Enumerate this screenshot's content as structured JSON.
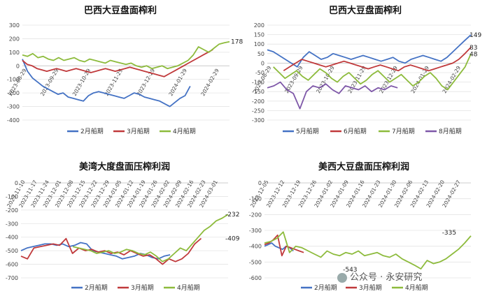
{
  "watermark": {
    "text": "公众号 · 永安研究",
    "icon": "wechat-icon"
  },
  "colors": {
    "blue": "#4472C4",
    "red": "#C0393B",
    "green": "#8DBB3C",
    "purple": "#7E57A8"
  },
  "chart_data": [
    {
      "type": "line",
      "title": "巴西大豆盘面榨利",
      "ylim": [
        -400,
        300
      ],
      "yticks": [
        300,
        200,
        100,
        0,
        -100,
        -200,
        -300,
        -400
      ],
      "grid": true,
      "legend": "bottom",
      "x_ticklabels": [
        "2023-08-29",
        "2023-09-29",
        "2023-10-29",
        "2023-11-29",
        "2023-12-29",
        "2024-01-29",
        "2024-02-29"
      ],
      "end_label": "178",
      "series": [
        {
          "name": "2月船期",
          "color": "#4472C4",
          "start": 0.0,
          "end": 0.81,
          "values": [
            50,
            -40,
            -90,
            -120,
            -150,
            -170,
            -190,
            -210,
            -200,
            -230,
            -240,
            -250,
            -260,
            -220,
            -200,
            -190,
            -200,
            -210,
            -220,
            -230,
            -240,
            -220,
            -200,
            -210,
            -230,
            -240,
            -250,
            -260,
            -280,
            -300,
            -270,
            -240,
            -220,
            -150
          ]
        },
        {
          "name": "3月船期",
          "color": "#C0393B",
          "start": 0.0,
          "end": 0.92,
          "values": [
            40,
            10,
            0,
            -20,
            -30,
            -40,
            -30,
            -20,
            -30,
            -40,
            -30,
            -20,
            -30,
            -40,
            -50,
            -40,
            -30,
            -20,
            -30,
            -40,
            -30,
            -20,
            -10,
            -20,
            -30,
            -40,
            -50,
            -60,
            -70,
            -80,
            -60,
            -40,
            -20,
            0,
            20,
            40,
            60,
            80,
            100,
            120
          ]
        },
        {
          "name": "4月船期",
          "color": "#8DBB3C",
          "start": 0.0,
          "end": 1.0,
          "values": [
            80,
            70,
            90,
            60,
            70,
            50,
            40,
            60,
            40,
            50,
            60,
            40,
            30,
            50,
            40,
            30,
            20,
            40,
            30,
            20,
            10,
            20,
            0,
            -10,
            0,
            -20,
            -10,
            0,
            -20,
            -10,
            0,
            20,
            40,
            80,
            140,
            120,
            100,
            130,
            160,
            170,
            178
          ]
        }
      ]
    },
    {
      "type": "line",
      "title": "巴西大豆盘面榨利",
      "ylim": [
        -300,
        200
      ],
      "yticks": [
        200,
        150,
        100,
        50,
        0,
        -50,
        -100,
        -150,
        -200,
        -250,
        -300
      ],
      "grid": true,
      "legend": "bottom",
      "x_ticklabels": [
        "2023-08-29",
        "2023-09-29",
        "2023-10-29",
        "2023-11-29",
        "2023-12-29",
        "2024-01-29",
        "2024-02-29"
      ],
      "end_labels": [
        "149",
        "83",
        "48"
      ],
      "series": [
        {
          "name": "5月船期",
          "color": "#4472C4",
          "start": 0.0,
          "end": 1.0,
          "values": [
            70,
            60,
            40,
            20,
            0,
            -20,
            30,
            60,
            40,
            20,
            30,
            50,
            40,
            30,
            20,
            30,
            40,
            30,
            20,
            10,
            20,
            30,
            10,
            0,
            20,
            30,
            40,
            30,
            20,
            10,
            30,
            60,
            90,
            120,
            149
          ]
        },
        {
          "name": "6月船期",
          "color": "#C0393B",
          "start": 0.08,
          "end": 1.0,
          "values": [
            -40,
            -20,
            0,
            20,
            10,
            0,
            -10,
            -20,
            -10,
            0,
            10,
            0,
            -10,
            -20,
            -30,
            -20,
            -10,
            -20,
            -30,
            -40,
            -20,
            -10,
            -20,
            -30,
            -40,
            -30,
            -20,
            -10,
            0,
            20,
            50,
            83
          ]
        },
        {
          "name": "7月船期",
          "color": "#8DBB3C",
          "start": 0.03,
          "end": 1.0,
          "values": [
            -20,
            -50,
            -80,
            -60,
            -40,
            -70,
            -90,
            -60,
            -30,
            -50,
            -80,
            -100,
            -70,
            -50,
            -80,
            -110,
            -90,
            -60,
            -40,
            -70,
            -100,
            -80,
            -60,
            -90,
            -120,
            -100,
            -70,
            -50,
            -80,
            -120,
            -140,
            -100,
            -60,
            -20,
            48
          ]
        },
        {
          "name": "8月船期",
          "color": "#7E57A8",
          "start": 0.0,
          "end": 0.64,
          "values": [
            -130,
            -120,
            -100,
            -140,
            -160,
            -240,
            -150,
            -120,
            -130,
            -110,
            -140,
            -160,
            -120,
            -130,
            -140,
            -120,
            -150,
            -130,
            -140,
            -120,
            -130
          ]
        }
      ]
    },
    {
      "type": "line",
      "title": "美湾大度盘面压榨利润",
      "ylim": [
        -700,
        0
      ],
      "yticks": [
        0,
        -100,
        -200,
        -300,
        -400,
        -500,
        -600,
        -700
      ],
      "grid": true,
      "legend": "bottom",
      "x_ticklabels": [
        "2023-11-10",
        "2023-11-17",
        "2023-11-24",
        "2023-12-01",
        "2023-12-08",
        "2023-12-15",
        "2023-12-22",
        "2023-12-29",
        "2024-01-05",
        "2024-01-12",
        "2024-01-19",
        "2024-01-26",
        "2024-02-02",
        "2024-02-09",
        "2024-02-16",
        "2024-02-23",
        "2024-03-01"
      ],
      "end_labels": [
        "-232",
        "-409"
      ],
      "series": [
        {
          "name": "2月船期",
          "color": "#4472C4",
          "start": 0.0,
          "end": 0.72,
          "values": [
            -500,
            -480,
            -470,
            -460,
            -450,
            -450,
            -460,
            -450,
            -470,
            -460,
            -440,
            -450,
            -500,
            -510,
            -520,
            -530,
            -540,
            -560,
            -550,
            -540,
            -520,
            -530,
            -550,
            -560,
            -540,
            -530
          ]
        },
        {
          "name": "3月船期",
          "color": "#C0393B",
          "start": 0.0,
          "end": 0.87,
          "values": [
            -540,
            -560,
            -480,
            -470,
            -460,
            -450,
            -460,
            -410,
            -520,
            -480,
            -500,
            -490,
            -510,
            -500,
            -520,
            -510,
            -530,
            -500,
            -520,
            -540,
            -530,
            -560,
            -600,
            -560,
            -580,
            -560,
            -520,
            -450,
            -409
          ]
        },
        {
          "name": "4月船期",
          "color": "#8DBB3C",
          "start": 0.25,
          "end": 1.0,
          "values": [
            -470,
            -480,
            -490,
            -500,
            -520,
            -510,
            -500,
            -520,
            -510,
            -490,
            -500,
            -520,
            -530,
            -510,
            -540,
            -580,
            -560,
            -520,
            -480,
            -500,
            -450,
            -400,
            -350,
            -320,
            -280,
            -260,
            -232
          ]
        }
      ]
    },
    {
      "type": "line",
      "title": "美西大豆盘面压榨利润",
      "ylim": [
        -600,
        0
      ],
      "yticks": [
        0,
        -100,
        -200,
        -300,
        -400,
        -500,
        -600
      ],
      "grid": true,
      "legend": "bottom",
      "x_ticklabels": [
        "2023-12-05",
        "2023-12-12",
        "2023-12-19",
        "2023-12-26",
        "2024-01-02",
        "2024-01-09",
        "2024-01-16",
        "2024-01-23",
        "2024-01-30",
        "2024-02-06",
        "2024-02-13",
        "2024-02-20",
        "2024-02-27"
      ],
      "end_labels": [
        "-335",
        "-543"
      ],
      "series": [
        {
          "name": "2月船期",
          "color": "#4472C4",
          "start": 0.0,
          "end": 0.14,
          "values": [
            -400,
            -390,
            -380,
            -400,
            -410,
            -420,
            -400,
            -410,
            -430
          ]
        },
        {
          "name": "3月船期",
          "color": "#C0393B",
          "start": 0.0,
          "end": 0.19,
          "values": [
            -390,
            -380,
            -360,
            -330,
            -460,
            -400,
            -410,
            -420,
            -430,
            -440
          ]
        },
        {
          "name": "4月船期",
          "color": "#8DBB3C",
          "start": 0.0,
          "end": 1.0,
          "values": [
            -380,
            -370,
            -350,
            -310,
            -440,
            -400,
            -410,
            -430,
            -450,
            -470,
            -430,
            -450,
            -460,
            -440,
            -450,
            -430,
            -460,
            -450,
            -440,
            -460,
            -470,
            -450,
            -480,
            -500,
            -520,
            -543,
            -490,
            -510,
            -500,
            -480,
            -450,
            -420,
            -380,
            -335
          ]
        }
      ]
    }
  ]
}
